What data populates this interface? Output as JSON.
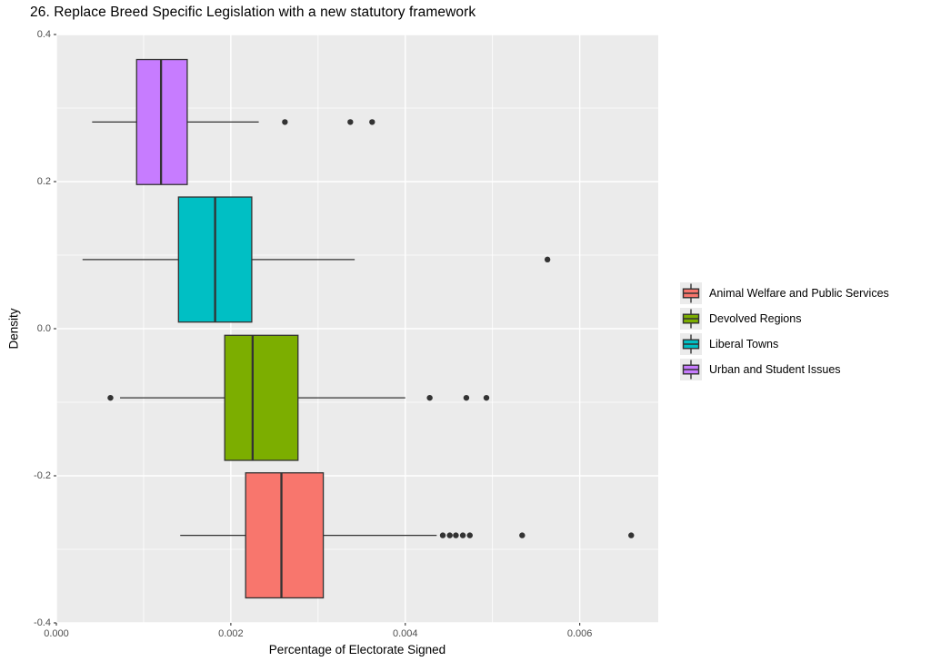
{
  "chart_data": {
    "type": "boxplot",
    "orientation": "horizontal",
    "title": "26. Replace Breed Specific Legislation with a new statutory framework",
    "xlabel": "Percentage of Electorate Signed",
    "ylabel": "Density",
    "xlim": [
      0.0,
      0.0069
    ],
    "ylim": [
      -0.4,
      0.4
    ],
    "x_ticks": [
      0.0,
      0.002,
      0.004,
      0.006
    ],
    "x_tick_labels": [
      "0.000",
      "0.002",
      "0.004",
      "0.006"
    ],
    "x_minor_ticks": [
      0.001,
      0.003,
      0.005
    ],
    "y_ticks": [
      0.4,
      0.2,
      0.0,
      -0.2,
      -0.4
    ],
    "y_tick_labels": [
      "0.4",
      "0.2",
      "0.0",
      "-0.2",
      "-0.4"
    ],
    "y_minor_ticks": [
      0.3,
      0.1,
      -0.1,
      -0.3
    ],
    "grid": "on",
    "legend_position": "right",
    "panel_background": "#EBEBEB",
    "grid_color": "#FFFFFF",
    "line_color": "#333333",
    "tick_label_color": "#4D4D4D",
    "box_half_height": 0.085,
    "series": [
      {
        "name": "Animal Welfare and Public Services",
        "color": "#F8766D",
        "center": -0.281,
        "whisker_low": 0.00142,
        "q1": 0.00217,
        "median": 0.00258,
        "q3": 0.00306,
        "whisker_high": 0.00436,
        "outliers": [
          0.00443,
          0.00451,
          0.00458,
          0.00466,
          0.00474,
          0.00534,
          0.00659
        ]
      },
      {
        "name": "Devolved Regions",
        "color": "#7CAE00",
        "center": -0.094,
        "whisker_low": 0.00073,
        "q1": 0.00193,
        "median": 0.00225,
        "q3": 0.00277,
        "whisker_high": 0.004,
        "outliers": [
          0.00062,
          0.00428,
          0.0047,
          0.00493
        ]
      },
      {
        "name": "Liberal Towns",
        "color": "#00BFC4",
        "center": 0.094,
        "whisker_low": 0.0003,
        "q1": 0.0014,
        "median": 0.00182,
        "q3": 0.00224,
        "whisker_high": 0.00342,
        "outliers": [
          0.00563
        ]
      },
      {
        "name": "Urban and Student Issues",
        "color": "#C77CFF",
        "center": 0.281,
        "whisker_low": 0.00041,
        "q1": 0.00092,
        "median": 0.0012,
        "q3": 0.0015,
        "whisker_high": 0.00232,
        "outliers": [
          0.00262,
          0.00337,
          0.00362
        ]
      }
    ]
  }
}
